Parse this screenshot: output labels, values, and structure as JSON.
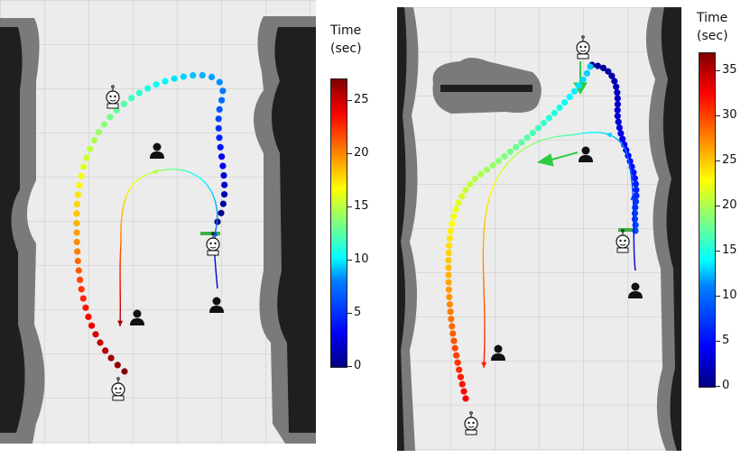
{
  "panels": [
    {
      "id": "A",
      "colorbar": {
        "title_line1": "Time",
        "title_line2": "(sec)",
        "ticks": [
          "0",
          "5",
          "10",
          "15",
          "20",
          "25"
        ],
        "max": 27
      },
      "icons": [
        "robot-icon",
        "person-icon"
      ],
      "colors": {
        "map_free": "#ececec",
        "map_inflation": "#7a7a7a",
        "map_obstacle": "#1a1a1a",
        "goal_marker": "#3cb043"
      }
    },
    {
      "id": "B",
      "colorbar": {
        "title_line1": "Time",
        "title_line2": "(sec)",
        "ticks": [
          "0",
          "5",
          "10",
          "15",
          "20",
          "25",
          "30",
          "35"
        ],
        "max": 37
      },
      "icons": [
        "robot-icon",
        "person-icon"
      ],
      "colors": {
        "map_free": "#ececec",
        "map_inflation": "#7a7a7a",
        "map_obstacle": "#1a1a1a",
        "goal_marker": "#3cb043",
        "guide_arrow": "#2ecc40"
      }
    }
  ]
}
